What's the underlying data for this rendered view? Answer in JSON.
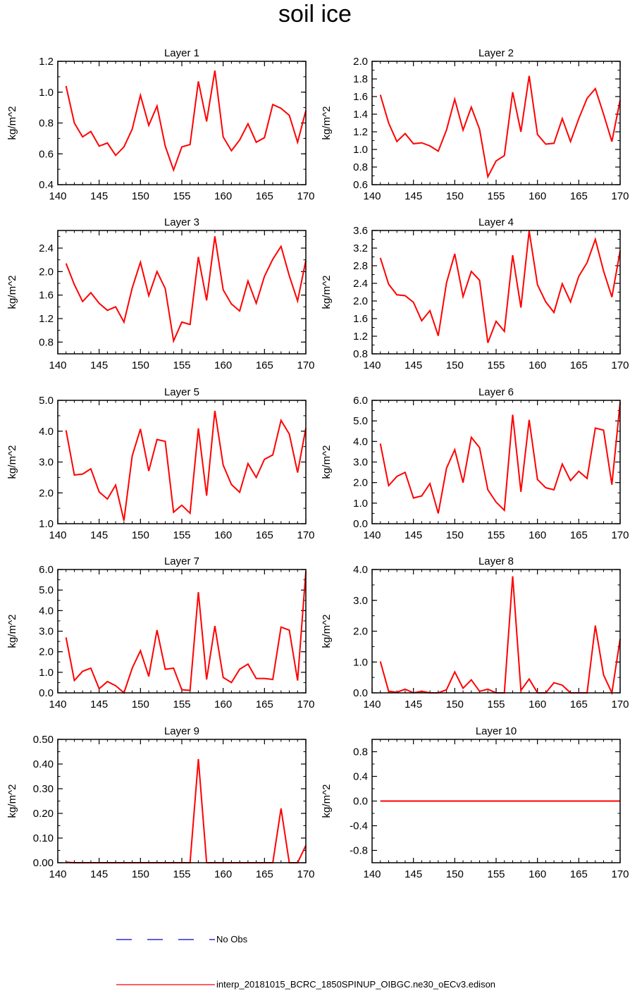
{
  "page_title": "soil ice",
  "legend": {
    "obs_label": "No Obs",
    "obs_color": "#0000cc",
    "model_label": "interp_20181015_BCRC_1850SPINUP_OIBGC.ne30_oECv3.edison",
    "model_color": "#ff0000"
  },
  "chart_data": [
    {
      "type": "line",
      "title": "Layer 1",
      "ylabel": "kg/m^2",
      "x": [
        141,
        142,
        143,
        144,
        145,
        146,
        147,
        148,
        149,
        150,
        151,
        152,
        153,
        154,
        155,
        156,
        157,
        158,
        159,
        160,
        161,
        162,
        163,
        164,
        165,
        166,
        167,
        168,
        169,
        170
      ],
      "xlim": [
        140,
        170
      ],
      "xticks": [
        140,
        145,
        150,
        155,
        160,
        165,
        170
      ],
      "ylim": [
        0.4,
        1.2
      ],
      "yticks": [
        0.4,
        0.6,
        0.8,
        1.0,
        1.2
      ],
      "ytick_labels": [
        "0.4",
        "0.6",
        "0.8",
        "1.0",
        "1.2"
      ],
      "series": [
        {
          "name": "interp_20181015_BCRC_1850SPINUP_OIBGC.ne30_oECv3.edison",
          "values": [
            1.04,
            0.8,
            0.71,
            0.745,
            0.65,
            0.67,
            0.59,
            0.645,
            0.76,
            0.98,
            0.785,
            0.91,
            0.65,
            0.495,
            0.645,
            0.66,
            1.07,
            0.81,
            1.14,
            0.71,
            0.62,
            0.69,
            0.795,
            0.675,
            0.705,
            0.92,
            0.895,
            0.85,
            0.675,
            0.88
          ]
        }
      ]
    },
    {
      "type": "line",
      "title": "Layer 2",
      "ylabel": "kg/m^2",
      "x": [
        141,
        142,
        143,
        144,
        145,
        146,
        147,
        148,
        149,
        150,
        151,
        152,
        153,
        154,
        155,
        156,
        157,
        158,
        159,
        160,
        161,
        162,
        163,
        164,
        165,
        166,
        167,
        168,
        169,
        170
      ],
      "xlim": [
        140,
        170
      ],
      "xticks": [
        140,
        145,
        150,
        155,
        160,
        165,
        170
      ],
      "ylim": [
        0.6,
        2.0
      ],
      "yticks": [
        0.6,
        0.8,
        1.0,
        1.2,
        1.4,
        1.6,
        1.8,
        2.0
      ],
      "ytick_labels": [
        "0.6",
        "0.8",
        "1.0",
        "1.2",
        "1.4",
        "1.6",
        "1.8",
        "2.0"
      ],
      "series": [
        {
          "name": "interp_20181015_BCRC_1850SPINUP_OIBGC.ne30_oECv3.edison",
          "values": [
            1.62,
            1.3,
            1.09,
            1.18,
            1.065,
            1.075,
            1.04,
            0.98,
            1.22,
            1.57,
            1.22,
            1.48,
            1.23,
            0.69,
            0.87,
            0.93,
            1.65,
            1.2,
            1.835,
            1.17,
            1.06,
            1.07,
            1.35,
            1.09,
            1.35,
            1.58,
            1.69,
            1.4,
            1.09,
            1.56
          ]
        }
      ]
    },
    {
      "type": "line",
      "title": "Layer 3",
      "ylabel": "kg/m^2",
      "x": [
        141,
        142,
        143,
        144,
        145,
        146,
        147,
        148,
        149,
        150,
        151,
        152,
        153,
        154,
        155,
        156,
        157,
        158,
        159,
        160,
        161,
        162,
        163,
        164,
        165,
        166,
        167,
        168,
        169,
        170
      ],
      "xlim": [
        140,
        170
      ],
      "xticks": [
        140,
        145,
        150,
        155,
        160,
        165,
        170
      ],
      "ylim": [
        0.6,
        2.7
      ],
      "yticks": [
        0.8,
        1.2,
        1.6,
        2.0,
        2.4
      ],
      "ytick_labels": [
        "0.8",
        "1.2",
        "1.6",
        "2.0",
        "2.4"
      ],
      "series": [
        {
          "name": "interp_20181015_BCRC_1850SPINUP_OIBGC.ne30_oECv3.edison",
          "values": [
            2.14,
            1.78,
            1.49,
            1.64,
            1.46,
            1.34,
            1.4,
            1.14,
            1.72,
            2.16,
            1.59,
            2.0,
            1.71,
            0.82,
            1.14,
            1.1,
            2.25,
            1.51,
            2.6,
            1.69,
            1.45,
            1.33,
            1.84,
            1.46,
            1.92,
            2.21,
            2.43,
            1.93,
            1.5,
            2.19
          ]
        }
      ]
    },
    {
      "type": "line",
      "title": "Layer 4",
      "ylabel": "kg/m^2",
      "x": [
        141,
        142,
        143,
        144,
        145,
        146,
        147,
        148,
        149,
        150,
        151,
        152,
        153,
        154,
        155,
        156,
        157,
        158,
        159,
        160,
        161,
        162,
        163,
        164,
        165,
        166,
        167,
        168,
        169,
        170
      ],
      "xlim": [
        140,
        170
      ],
      "xticks": [
        140,
        145,
        150,
        155,
        160,
        165,
        170
      ],
      "ylim": [
        0.8,
        3.6
      ],
      "yticks": [
        0.8,
        1.2,
        1.6,
        2.0,
        2.4,
        2.8,
        3.2,
        3.6
      ],
      "ytick_labels": [
        "0.8",
        "1.2",
        "1.6",
        "2.0",
        "2.4",
        "2.8",
        "3.2",
        "3.6"
      ],
      "series": [
        {
          "name": "interp_20181015_BCRC_1850SPINUP_OIBGC.ne30_oECv3.edison",
          "values": [
            2.98,
            2.38,
            2.14,
            2.12,
            1.97,
            1.55,
            1.78,
            1.21,
            2.41,
            3.07,
            2.1,
            2.67,
            2.47,
            1.05,
            1.54,
            1.31,
            3.04,
            1.85,
            3.59,
            2.37,
            1.98,
            1.74,
            2.39,
            1.98,
            2.56,
            2.87,
            3.4,
            2.68,
            2.09,
            3.14
          ]
        }
      ]
    },
    {
      "type": "line",
      "title": "Layer 5",
      "ylabel": "kg/m^2",
      "x": [
        141,
        142,
        143,
        144,
        145,
        146,
        147,
        148,
        149,
        150,
        151,
        152,
        153,
        154,
        155,
        156,
        157,
        158,
        159,
        160,
        161,
        162,
        163,
        164,
        165,
        166,
        167,
        168,
        169,
        170
      ],
      "xlim": [
        140,
        170
      ],
      "xticks": [
        140,
        145,
        150,
        155,
        160,
        165,
        170
      ],
      "ylim": [
        1.0,
        5.0
      ],
      "yticks": [
        1.0,
        2.0,
        3.0,
        4.0,
        5.0
      ],
      "ytick_labels": [
        "1.0",
        "2.0",
        "3.0",
        "4.0",
        "5.0"
      ],
      "series": [
        {
          "name": "interp_20181015_BCRC_1850SPINUP_OIBGC.ne30_oECv3.edison",
          "values": [
            4.03,
            2.58,
            2.61,
            2.78,
            2.03,
            1.8,
            2.25,
            1.1,
            3.2,
            4.07,
            2.71,
            3.73,
            3.67,
            1.37,
            1.6,
            1.34,
            4.09,
            1.91,
            4.66,
            2.9,
            2.27,
            2.02,
            2.95,
            2.5,
            3.09,
            3.23,
            4.35,
            3.91,
            2.66,
            4.1
          ]
        }
      ]
    },
    {
      "type": "line",
      "title": "Layer 6",
      "ylabel": "kg/m^2",
      "x": [
        141,
        142,
        143,
        144,
        145,
        146,
        147,
        148,
        149,
        150,
        151,
        152,
        153,
        154,
        155,
        156,
        157,
        158,
        159,
        160,
        161,
        162,
        163,
        164,
        165,
        166,
        167,
        168,
        169,
        170
      ],
      "xlim": [
        140,
        170
      ],
      "xticks": [
        140,
        145,
        150,
        155,
        160,
        165,
        170
      ],
      "ylim": [
        0.0,
        6.0
      ],
      "yticks": [
        0.0,
        1.0,
        2.0,
        3.0,
        4.0,
        5.0,
        6.0
      ],
      "ytick_labels": [
        "0.0",
        "1.0",
        "2.0",
        "3.0",
        "4.0",
        "5.0",
        "6.0"
      ],
      "series": [
        {
          "name": "interp_20181015_BCRC_1850SPINUP_OIBGC.ne30_oECv3.edison",
          "values": [
            3.9,
            1.85,
            2.3,
            2.5,
            1.25,
            1.35,
            1.95,
            0.5,
            2.7,
            3.6,
            2.0,
            4.2,
            3.7,
            1.65,
            1.05,
            0.65,
            5.3,
            1.55,
            5.05,
            2.15,
            1.75,
            1.65,
            2.9,
            2.1,
            2.55,
            2.2,
            4.65,
            4.55,
            1.9,
            5.9
          ]
        }
      ]
    },
    {
      "type": "line",
      "title": "Layer 7",
      "ylabel": "kg/m^2",
      "x": [
        141,
        142,
        143,
        144,
        145,
        146,
        147,
        148,
        149,
        150,
        151,
        152,
        153,
        154,
        155,
        156,
        157,
        158,
        159,
        160,
        161,
        162,
        163,
        164,
        165,
        166,
        167,
        168,
        169,
        170
      ],
      "xlim": [
        140,
        170
      ],
      "xticks": [
        140,
        145,
        150,
        155,
        160,
        165,
        170
      ],
      "ylim": [
        0.0,
        6.0
      ],
      "yticks": [
        0.0,
        1.0,
        2.0,
        3.0,
        4.0,
        5.0,
        6.0
      ],
      "ytick_labels": [
        "0.0",
        "1.0",
        "2.0",
        "3.0",
        "4.0",
        "5.0",
        "6.0"
      ],
      "series": [
        {
          "name": "interp_20181015_BCRC_1850SPINUP_OIBGC.ne30_oECv3.edison",
          "values": [
            2.7,
            0.6,
            1.05,
            1.2,
            0.2,
            0.55,
            0.35,
            0.0,
            1.2,
            2.05,
            0.8,
            3.05,
            1.15,
            1.2,
            0.15,
            0.12,
            4.9,
            0.65,
            3.25,
            0.75,
            0.5,
            1.15,
            1.4,
            0.7,
            0.7,
            0.65,
            3.2,
            3.05,
            0.6,
            5.9
          ]
        }
      ]
    },
    {
      "type": "line",
      "title": "Layer 8",
      "ylabel": "kg/m^2",
      "x": [
        141,
        142,
        143,
        144,
        145,
        146,
        147,
        148,
        149,
        150,
        151,
        152,
        153,
        154,
        155,
        156,
        157,
        158,
        159,
        160,
        161,
        162,
        163,
        164,
        165,
        166,
        167,
        168,
        169,
        170
      ],
      "xlim": [
        140,
        170
      ],
      "xticks": [
        140,
        145,
        150,
        155,
        160,
        165,
        170
      ],
      "ylim": [
        0.0,
        4.0
      ],
      "yticks": [
        0.0,
        1.0,
        2.0,
        3.0,
        4.0
      ],
      "ytick_labels": [
        "0.0",
        "1.0",
        "2.0",
        "3.0",
        "4.0"
      ],
      "series": [
        {
          "name": "interp_20181015_BCRC_1850SPINUP_OIBGC.ne30_oECv3.edison",
          "values": [
            1.02,
            0.05,
            0.02,
            0.12,
            0.0,
            0.05,
            0.0,
            0.0,
            0.1,
            0.68,
            0.15,
            0.42,
            0.05,
            0.12,
            0.0,
            0.0,
            3.78,
            0.08,
            0.45,
            0.0,
            0.0,
            0.33,
            0.25,
            0.0,
            0.0,
            0.0,
            2.18,
            0.58,
            0.0,
            1.75
          ]
        }
      ]
    },
    {
      "type": "line",
      "title": "Layer 9",
      "ylabel": "kg/m^2",
      "x": [
        141,
        142,
        143,
        144,
        145,
        146,
        147,
        148,
        149,
        150,
        151,
        152,
        153,
        154,
        155,
        156,
        157,
        158,
        159,
        160,
        161,
        162,
        163,
        164,
        165,
        166,
        167,
        168,
        169,
        170
      ],
      "xlim": [
        140,
        170
      ],
      "xticks": [
        140,
        145,
        150,
        155,
        160,
        165,
        170
      ],
      "ylim": [
        0.0,
        0.5
      ],
      "yticks": [
        0.0,
        0.1,
        0.2,
        0.3,
        0.4,
        0.5
      ],
      "ytick_labels": [
        "0.00",
        "0.10",
        "0.20",
        "0.30",
        "0.40",
        "0.50"
      ],
      "series": [
        {
          "name": "interp_20181015_BCRC_1850SPINUP_OIBGC.ne30_oECv3.edison",
          "values": [
            0.002,
            0.0,
            0.0,
            0.0,
            0.0,
            0.0,
            0.0,
            0.0,
            0.0,
            0.0,
            0.0,
            0.0,
            0.0,
            0.0,
            0.0,
            0.0,
            0.42,
            0.0,
            0.0,
            0.0,
            0.0,
            0.0,
            0.0,
            0.0,
            0.0,
            0.0,
            0.22,
            0.0,
            0.0,
            0.07
          ]
        }
      ]
    },
    {
      "type": "line",
      "title": "Layer 10",
      "ylabel": "kg/m^2",
      "x": [
        141,
        142,
        143,
        144,
        145,
        146,
        147,
        148,
        149,
        150,
        151,
        152,
        153,
        154,
        155,
        156,
        157,
        158,
        159,
        160,
        161,
        162,
        163,
        164,
        165,
        166,
        167,
        168,
        169,
        170
      ],
      "xlim": [
        140,
        170
      ],
      "xticks": [
        140,
        145,
        150,
        155,
        160,
        165,
        170
      ],
      "ylim": [
        -1.0,
        1.0
      ],
      "yticks": [
        -0.8,
        -0.4,
        0.0,
        0.4,
        0.8
      ],
      "ytick_labels": [
        "-0.8",
        "-0.4",
        "0.0",
        "0.4",
        "0.8"
      ],
      "series": [
        {
          "name": "interp_20181015_BCRC_1850SPINUP_OIBGC.ne30_oECv3.edison",
          "values": [
            0,
            0,
            0,
            0,
            0,
            0,
            0,
            0,
            0,
            0,
            0,
            0,
            0,
            0,
            0,
            0,
            0,
            0,
            0,
            0,
            0,
            0,
            0,
            0,
            0,
            0,
            0,
            0,
            0,
            0
          ]
        }
      ]
    }
  ]
}
